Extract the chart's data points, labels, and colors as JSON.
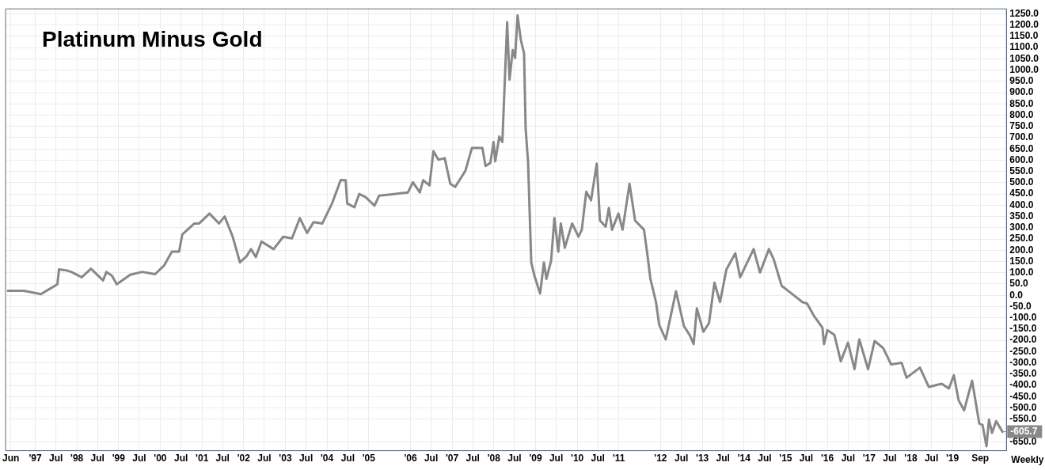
{
  "chart_data": {
    "type": "line",
    "title": "Platinum Minus Gold",
    "color": "#888888",
    "grid": true,
    "x": [
      "1996-05-06",
      "1996-09-24",
      "1997-02-19",
      "1997-05-19",
      "1997-07-14",
      "1997-07-28",
      "1997-09-30",
      "1997-11-12",
      "1998-02-12",
      "1998-05-04",
      "1998-08-18",
      "1998-09-16",
      "1998-11-04",
      "1998-12-16",
      "1999-04-13",
      "1999-07-27",
      "1999-11-17",
      "2000-02-03",
      "2000-04-12",
      "2000-06-14",
      "2000-07-12",
      "2000-10-26",
      "2000-12-07",
      "2001-03-07",
      "2001-05-30",
      "2001-07-18",
      "2001-09-27",
      "2001-11-29",
      "2002-01-25",
      "2002-03-06",
      "2002-04-18",
      "2002-06-06",
      "2002-09-20",
      "2002-12-13",
      "2003-02-28",
      "2003-05-08",
      "2003-07-10",
      "2003-09-05",
      "2003-11-21",
      "2004-02-14",
      "2004-04-30",
      "2004-06-12",
      "2004-06-26",
      "2004-08-28",
      "2004-10-09",
      "2004-12-04",
      "2005-02-20",
      "2005-04-02",
      "2005-08-13",
      "2005-12-10",
      "2006-01-22",
      "2006-03-24",
      "2006-04-22",
      "2006-06-17",
      "2006-07-21",
      "2006-09-03",
      "2006-10-28",
      "2006-12-16",
      "2007-01-28",
      "2007-04-27",
      "2007-06-23",
      "2007-09-23",
      "2007-10-21",
      "2007-12-02",
      "2007-12-30",
      "2008-01-14",
      "2008-02-18",
      "2008-03-16",
      "2008-04-27",
      "2008-05-18",
      "2008-06-15",
      "2008-07-06",
      "2008-07-27",
      "2008-08-25",
      "2008-09-22",
      "2008-10-06",
      "2008-10-27",
      "2008-11-24",
      "2008-12-22",
      "2009-02-10",
      "2009-03-15",
      "2009-04-06",
      "2009-05-17",
      "2009-06-15",
      "2009-07-19",
      "2009-08-10",
      "2009-09-14",
      "2009-11-17",
      "2010-01-12",
      "2010-02-10",
      "2010-03-21",
      "2010-05-02",
      "2010-06-21",
      "2010-07-19",
      "2010-09-07",
      "2010-10-05",
      "2010-11-02",
      "2010-12-28",
      "2011-02-02",
      "2011-04-04",
      "2011-05-23",
      "2011-08-09",
      "2011-09-06",
      "2011-10-04",
      "2011-11-22",
      "2011-12-20",
      "2012-02-15",
      "2012-05-15",
      "2012-07-24",
      "2012-09-12",
      "2012-10-17",
      "2012-11-14",
      "2013-01-10",
      "2013-02-28",
      "2013-04-17",
      "2013-06-05",
      "2013-07-31",
      "2013-10-17",
      "2013-11-28",
      "2014-03-26",
      "2014-05-21",
      "2014-08-07",
      "2014-09-18",
      "2014-11-27",
      "2015-03-11",
      "2015-05-27",
      "2015-07-08",
      "2015-09-03",
      "2015-11-19",
      "2015-12-03",
      "2016-01-01",
      "2016-03-03",
      "2016-04-28",
      "2016-06-30",
      "2016-08-26",
      "2016-10-07",
      "2016-12-23",
      "2017-02-18",
      "2017-05-04",
      "2017-07-13",
      "2017-10-13",
      "2017-11-25",
      "2018-03-22",
      "2018-06-08",
      "2018-09-29",
      "2018-12-01",
      "2019-01-13",
      "2019-02-24",
      "2019-04-13",
      "2019-06-22",
      "2019-08-24",
      "2019-09-22",
      "2019-10-26",
      "2019-11-17",
      "2019-12-14",
      "2020-01-19",
      "2020-03-14"
    ],
    "values": [
      20,
      20,
      5,
      32,
      49,
      115,
      111,
      104,
      80,
      118,
      66,
      104,
      87,
      49,
      91,
      104,
      94,
      132,
      194,
      194,
      270,
      319,
      319,
      363,
      319,
      350,
      260,
      146,
      173,
      205,
      170,
      239,
      205,
      260,
      253,
      343,
      277,
      325,
      319,
      408,
      512,
      511,
      408,
      391,
      450,
      436,
      398,
      443,
      450,
      457,
      502,
      457,
      511,
      488,
      640,
      602,
      609,
      495,
      481,
      553,
      654,
      654,
      574,
      588,
      681,
      595,
      705,
      681,
      1213,
      958,
      1089,
      1054,
      1243,
      1134,
      1075,
      740,
      595,
      146,
      87,
      8,
      146,
      73,
      153,
      343,
      194,
      319,
      211,
      319,
      260,
      291,
      460,
      422,
      585,
      332,
      305,
      388,
      291,
      363,
      291,
      495,
      332,
      291,
      187,
      73,
      -30,
      -131,
      -196,
      18,
      -137,
      -176,
      -217,
      -58,
      -162,
      -124,
      56,
      -30,
      115,
      187,
      80,
      205,
      101,
      205,
      160,
      42,
      1,
      -30,
      -37,
      -89,
      -144,
      -217,
      -155,
      -176,
      -293,
      -210,
      -328,
      -196,
      -328,
      -203,
      -234,
      -307,
      -300,
      -366,
      -321,
      -407,
      -393,
      -414,
      -355,
      -466,
      -511,
      -379,
      -569,
      -576,
      -670,
      -552,
      -611,
      -559,
      -605.7
    ],
    "xlim": [
      "1996-04-16",
      "2020-04-18"
    ],
    "xticks": [
      {
        "value": "1996-06-01",
        "label": "Jun"
      },
      {
        "value": "1997-01-01",
        "label": "'97"
      },
      {
        "value": "1997-07-01",
        "label": "Jul"
      },
      {
        "value": "1998-01-01",
        "label": "'98"
      },
      {
        "value": "1998-07-01",
        "label": "Jul"
      },
      {
        "value": "1999-01-01",
        "label": "'99"
      },
      {
        "value": "1999-07-01",
        "label": "Jul"
      },
      {
        "value": "2000-01-01",
        "label": "'00"
      },
      {
        "value": "2000-07-01",
        "label": "Jul"
      },
      {
        "value": "2001-01-01",
        "label": "'01"
      },
      {
        "value": "2001-07-01",
        "label": "Jul"
      },
      {
        "value": "2002-01-01",
        "label": "'02"
      },
      {
        "value": "2002-07-01",
        "label": "Jul"
      },
      {
        "value": "2003-01-01",
        "label": "'03"
      },
      {
        "value": "2003-07-01",
        "label": "Jul"
      },
      {
        "value": "2004-01-01",
        "label": "'04"
      },
      {
        "value": "2004-07-01",
        "label": "Jul"
      },
      {
        "value": "2005-01-01",
        "label": "'05"
      },
      {
        "value": "2006-01-01",
        "label": "'06"
      },
      {
        "value": "2006-07-01",
        "label": "Jul"
      },
      {
        "value": "2007-01-01",
        "label": "'07"
      },
      {
        "value": "2007-07-01",
        "label": "Jul"
      },
      {
        "value": "2008-01-01",
        "label": "'08"
      },
      {
        "value": "2008-07-01",
        "label": "Jul"
      },
      {
        "value": "2009-01-01",
        "label": "'09"
      },
      {
        "value": "2009-07-01",
        "label": "Jul"
      },
      {
        "value": "2010-01-01",
        "label": "'10"
      },
      {
        "value": "2010-07-01",
        "label": "Jul"
      },
      {
        "value": "2011-01-01",
        "label": "'11"
      },
      {
        "value": "2012-01-01",
        "label": "'12"
      },
      {
        "value": "2012-07-01",
        "label": "Jul"
      },
      {
        "value": "2013-01-01",
        "label": "'13"
      },
      {
        "value": "2013-07-01",
        "label": "Jul"
      },
      {
        "value": "2014-01-01",
        "label": "'14"
      },
      {
        "value": "2014-07-01",
        "label": "Jul"
      },
      {
        "value": "2015-01-01",
        "label": "'15"
      },
      {
        "value": "2015-07-01",
        "label": "Jul"
      },
      {
        "value": "2016-01-01",
        "label": "'16"
      },
      {
        "value": "2016-07-01",
        "label": "Jul"
      },
      {
        "value": "2017-01-01",
        "label": "'17"
      },
      {
        "value": "2017-07-01",
        "label": "Jul"
      },
      {
        "value": "2018-01-01",
        "label": "'18"
      },
      {
        "value": "2018-07-01",
        "label": "Jul"
      },
      {
        "value": "2019-01-01",
        "label": "'19"
      },
      {
        "value": "2019-09-01",
        "label": "Sep"
      }
    ],
    "ylim": [
      -690,
      1272
    ],
    "yticks": [
      {
        "value": 1250,
        "label": "1250.0"
      },
      {
        "value": 1200,
        "label": "1200.0"
      },
      {
        "value": 1150,
        "label": "1150.0"
      },
      {
        "value": 1100,
        "label": "1100.0"
      },
      {
        "value": 1050,
        "label": "1050.0"
      },
      {
        "value": 1000,
        "label": "1000.0"
      },
      {
        "value": 950,
        "label": "950.0"
      },
      {
        "value": 900,
        "label": "900.0"
      },
      {
        "value": 850,
        "label": "850.0"
      },
      {
        "value": 800,
        "label": "800.0"
      },
      {
        "value": 750,
        "label": "750.0"
      },
      {
        "value": 700,
        "label": "700.0"
      },
      {
        "value": 650,
        "label": "650.0"
      },
      {
        "value": 600,
        "label": "600.0"
      },
      {
        "value": 550,
        "label": "550.0"
      },
      {
        "value": 500,
        "label": "500.0"
      },
      {
        "value": 450,
        "label": "450.0"
      },
      {
        "value": 400,
        "label": "400.0"
      },
      {
        "value": 350,
        "label": "350.0"
      },
      {
        "value": 300,
        "label": "300.0"
      },
      {
        "value": 250,
        "label": "250.0"
      },
      {
        "value": 200,
        "label": "200.0"
      },
      {
        "value": 150,
        "label": "150.0"
      },
      {
        "value": 100,
        "label": "100.0"
      },
      {
        "value": 50,
        "label": "50.0"
      },
      {
        "value": 0,
        "label": "0.0"
      },
      {
        "value": -50,
        "label": "-50.0"
      },
      {
        "value": -100,
        "label": "-100.0"
      },
      {
        "value": -150,
        "label": "-150.0"
      },
      {
        "value": -200,
        "label": "-200.0"
      },
      {
        "value": -250,
        "label": "-250.0"
      },
      {
        "value": -300,
        "label": "-300.0"
      },
      {
        "value": -350,
        "label": "-350.0"
      },
      {
        "value": -400,
        "label": "-400.0"
      },
      {
        "value": -450,
        "label": "-450.0"
      },
      {
        "value": -500,
        "label": "-500.0"
      },
      {
        "value": -550,
        "label": "-550.0"
      },
      {
        "value": -650,
        "label": "-650.0"
      }
    ],
    "annotations": [
      {
        "text": "-605.7",
        "x": "2020-03-14",
        "y": -605.7
      },
      "Weekly"
    ]
  }
}
